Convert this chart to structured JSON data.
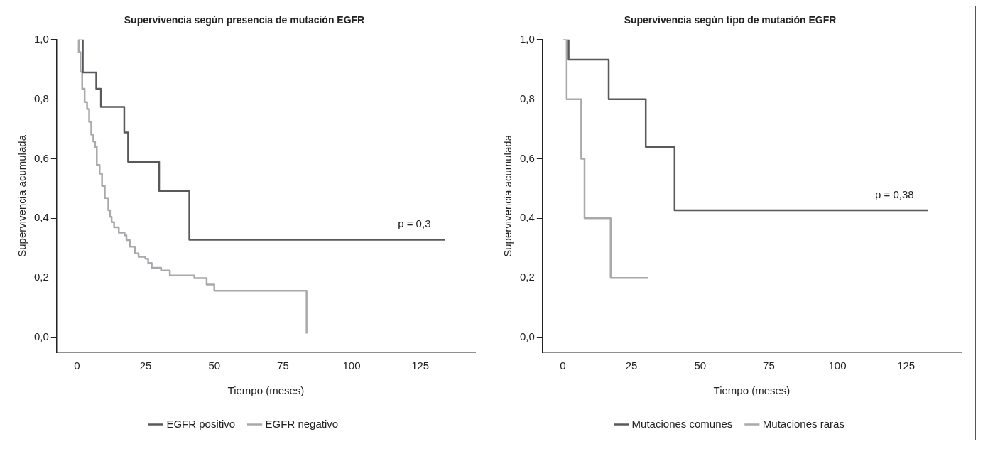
{
  "chart_data": [
    {
      "type": "step",
      "title": "Supervivencia según presencia de mutación EGFR",
      "xlabel": "Tiempo (meses)",
      "ylabel": "Supervivencia acumulada",
      "xlim": [
        -7.4,
        145
      ],
      "ylim": [
        -0.05,
        1.0
      ],
      "xticks": [
        0,
        25,
        50,
        75,
        100,
        125
      ],
      "yticks": [
        {
          "value": 0,
          "label": "0,0"
        },
        {
          "value": 0.2,
          "label": "0,2"
        },
        {
          "value": 0.4,
          "label": "0,4"
        },
        {
          "value": 0.6,
          "label": "0,6"
        },
        {
          "value": 0.8,
          "label": "0,8"
        },
        {
          "value": 1,
          "label": "1,0"
        }
      ],
      "grid": false,
      "legend": "bottom",
      "annotations": [
        "p = 0,3"
      ],
      "series": [
        {
          "name": "EGFR positivo",
          "color": "#58595b",
          "x": [
            0.6,
            2.1,
            7,
            8.7,
            17.2,
            18.6,
            29.9,
            40.9,
            134
          ],
          "values": [
            1,
            0.89,
            0.835,
            0.774,
            0.688,
            0.59,
            0.492,
            0.328,
            0.328
          ]
        },
        {
          "name": "EGFR negativo",
          "color": "#a7a9ac",
          "x": [
            0.24,
            0.62,
            1.25,
            1.88,
            2.77,
            3.66,
            4.42,
            5.18,
            5.94,
            6.57,
            7.2,
            8.22,
            9.1,
            10.1,
            11.4,
            12.0,
            12.6,
            13.5,
            15.2,
            17.3,
            18.0,
            19.2,
            21.1,
            22.4,
            24.9,
            25.9,
            27.2,
            30.6,
            33.8,
            42.7,
            47.2,
            50.0,
            83.6
          ],
          "values": [
            1,
            0.958,
            0.892,
            0.835,
            0.79,
            0.767,
            0.724,
            0.681,
            0.658,
            0.64,
            0.579,
            0.55,
            0.509,
            0.468,
            0.427,
            0.405,
            0.387,
            0.37,
            0.352,
            0.343,
            0.327,
            0.305,
            0.282,
            0.271,
            0.264,
            0.25,
            0.234,
            0.225,
            0.208,
            0.199,
            0.178,
            0.157,
            0.013
          ]
        }
      ]
    },
    {
      "type": "step",
      "title": "Supervivencia según tipo de mutación EGFR",
      "xlabel": "Tiempo (meses)",
      "ylabel": "Supervivencia acumulada",
      "xlim": [
        -7.4,
        145
      ],
      "ylim": [
        -0.05,
        1.0
      ],
      "xticks": [
        0,
        25,
        50,
        75,
        100,
        125
      ],
      "yticks": [
        {
          "value": 0,
          "label": "0,0"
        },
        {
          "value": 0.2,
          "label": "0,2"
        },
        {
          "value": 0.4,
          "label": "0,4"
        },
        {
          "value": 0.6,
          "label": "0,6"
        },
        {
          "value": 0.8,
          "label": "0,8"
        },
        {
          "value": 1,
          "label": "1,0"
        }
      ],
      "grid": false,
      "legend": "bottom",
      "annotations": [
        "p = 0,38"
      ],
      "series": [
        {
          "name": "Mutaciones comunes",
          "color": "#58595b",
          "x": [
            0,
            2.1,
            16.7,
            30.2,
            40.7,
            133
          ],
          "values": [
            1,
            0.933,
            0.8,
            0.64,
            0.427,
            0.427
          ]
        },
        {
          "name": "Mutaciones raras",
          "color": "#a7a9ac",
          "x": [
            0,
            1.4,
            6.7,
            7.9,
            17.4,
            31.1
          ],
          "values": [
            1,
            0.8,
            0.6,
            0.4,
            0.2,
            0.2
          ]
        }
      ]
    }
  ]
}
